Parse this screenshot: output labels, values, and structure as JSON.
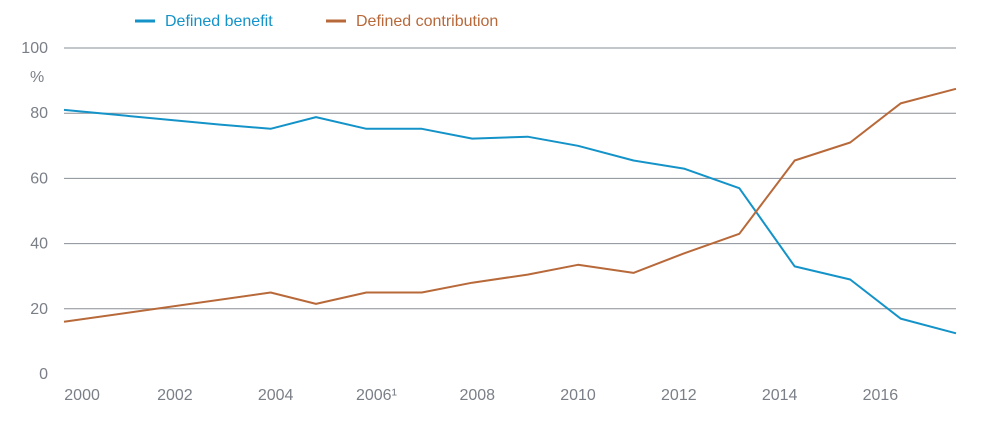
{
  "chart_data": {
    "type": "line",
    "title": "",
    "xlabel": "",
    "ylabel": "%",
    "ylim": [
      0,
      100
    ],
    "xlim": [
      1999.8,
      2017.5
    ],
    "grid": true,
    "legend_position": "top-left",
    "y_ticks": [
      0,
      20,
      40,
      60,
      80,
      100
    ],
    "x_ticks": [
      {
        "value": 2000,
        "label": "2000"
      },
      {
        "value": 2002,
        "label": "2002"
      },
      {
        "value": 2004,
        "label": "2004"
      },
      {
        "value": 2006,
        "label": "2006¹"
      },
      {
        "value": 2008,
        "label": "2008"
      },
      {
        "value": 2010,
        "label": "2010"
      },
      {
        "value": 2012,
        "label": "2012"
      },
      {
        "value": 2014,
        "label": "2014"
      },
      {
        "value": 2016,
        "label": "2016"
      }
    ],
    "series": [
      {
        "name": "Defined benefit",
        "color": "#1493c8",
        "points": [
          [
            1999.8,
            81
          ],
          [
            2002.9,
            76.5
          ],
          [
            2003.9,
            75.2
          ],
          [
            2004.8,
            78.8
          ],
          [
            2005.8,
            75.2
          ],
          [
            2006.9,
            75.2
          ],
          [
            2007.9,
            72.2
          ],
          [
            2009.0,
            72.8
          ],
          [
            2010.0,
            70
          ],
          [
            2011.1,
            65.5
          ],
          [
            2012.1,
            63
          ],
          [
            2013.2,
            57
          ],
          [
            2014.3,
            33
          ],
          [
            2015.4,
            29
          ],
          [
            2016.4,
            17
          ],
          [
            2017.5,
            12.5
          ]
        ]
      },
      {
        "name": "Defined contribution",
        "color": "#b8693a",
        "points": [
          [
            1999.8,
            16
          ],
          [
            2003.9,
            25
          ],
          [
            2004.8,
            21.5
          ],
          [
            2005.8,
            25
          ],
          [
            2006.9,
            25
          ],
          [
            2007.9,
            28
          ],
          [
            2009.0,
            30.5
          ],
          [
            2010.0,
            33.5
          ],
          [
            2011.1,
            31
          ],
          [
            2012.1,
            37
          ],
          [
            2013.2,
            43
          ],
          [
            2014.3,
            65.5
          ],
          [
            2015.4,
            71
          ],
          [
            2016.4,
            83
          ],
          [
            2017.5,
            87.5
          ]
        ]
      }
    ]
  }
}
